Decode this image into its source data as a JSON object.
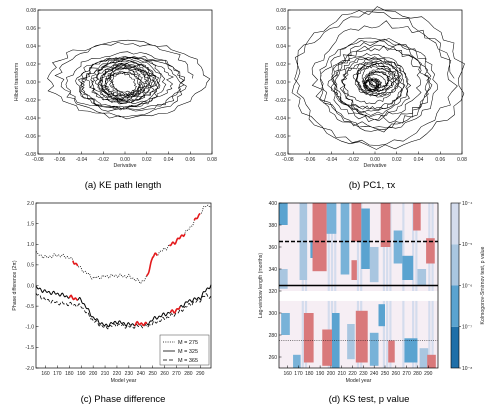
{
  "chart_data": [
    {
      "id": "a",
      "type": "line",
      "caption": "(a) KE path length",
      "xlabel": "Derivative",
      "ylabel": "Hilbert transform",
      "xlim": [
        -0.08,
        0.08
      ],
      "ylim": [
        -0.08,
        0.08
      ],
      "xticks": [
        "-0.08",
        "-0.06",
        "-0.04",
        "-0.02",
        "0.00",
        "0.02",
        "0.04",
        "0.06",
        "0.08"
      ],
      "yticks": [
        "-0.08",
        "-0.06",
        "-0.04",
        "-0.02",
        "0.00",
        "0.02",
        "0.04",
        "0.06",
        "0.08"
      ],
      "grid": false,
      "trajectory": {
        "center": [
          0.0,
          0.0
        ],
        "outer_radius_x": 0.062,
        "outer_radius_y": 0.036,
        "inner_radius": 0.016,
        "turns": 22
      }
    },
    {
      "id": "b",
      "type": "line",
      "caption": "(b) PC1, τx",
      "xlabel": "Derivative",
      "ylabel": "Hilbert transform",
      "xlim": [
        -0.08,
        0.08
      ],
      "ylim": [
        -0.08,
        0.08
      ],
      "xticks": [
        "-0.08",
        "-0.06",
        "-0.04",
        "-0.02",
        "0.00",
        "0.02",
        "0.04",
        "0.06",
        "0.08"
      ],
      "yticks": [
        "-0.08",
        "-0.06",
        "-0.04",
        "-0.02",
        "0.00",
        "0.02",
        "0.04",
        "0.06",
        "0.08"
      ],
      "grid": false,
      "trajectory": {
        "center": [
          0.0,
          0.0
        ],
        "outer_radius_x": 0.068,
        "outer_radius_y": 0.066,
        "inner_radius": 0.005,
        "turns": 30
      }
    },
    {
      "id": "c",
      "type": "line",
      "caption": "(c) Phase difference",
      "xlabel": "Model year",
      "ylabel": "Phase difference (2π)",
      "xlim": [
        152,
        299
      ],
      "ylim": [
        -2.0,
        2.0
      ],
      "xticks": [
        160,
        170,
        180,
        190,
        200,
        210,
        220,
        230,
        240,
        250,
        260,
        270,
        280,
        290
      ],
      "yticks": [
        "-2.0",
        "-1.5",
        "-1.0",
        "-0.5",
        "0.0",
        "0.5",
        "1.0",
        "1.5",
        "2.0"
      ],
      "grid": false,
      "legend_position": "lower-right",
      "x": [
        152,
        160,
        170,
        180,
        190,
        200,
        210,
        220,
        230,
        240,
        245,
        250,
        260,
        270,
        280,
        290,
        295,
        299
      ],
      "series": [
        {
          "name": "M = 275",
          "style": "dotted",
          "values": [
            0.78,
            0.68,
            0.74,
            0.68,
            0.4,
            0.18,
            0.22,
            0.24,
            0.22,
            0.08,
            0.18,
            0.7,
            0.88,
            1.08,
            1.35,
            1.75,
            1.95,
            1.92
          ]
        },
        {
          "name": "M = 325",
          "style": "solid",
          "values": [
            -0.05,
            -0.15,
            -0.2,
            -0.28,
            -0.35,
            -0.78,
            -0.98,
            -0.88,
            -0.95,
            -0.92,
            -0.95,
            -0.82,
            -0.7,
            -0.6,
            -0.38,
            -0.3,
            -0.1,
            0.0
          ]
        },
        {
          "name": "M = 365",
          "style": "dashed",
          "values": [
            -0.2,
            -0.35,
            -0.42,
            -0.45,
            -0.5,
            -0.85,
            -1.02,
            -0.95,
            -1.0,
            -0.98,
            -1.0,
            -0.92,
            -0.8,
            -0.68,
            -0.48,
            -0.35,
            -0.22,
            -0.3
          ]
        }
      ],
      "highlights": [
        {
          "series": "M = 275",
          "x_ranges": [
            [
              183,
              187
            ],
            [
              245,
              254
            ],
            [
              264,
              277
            ],
            [
              285,
              290
            ]
          ]
        },
        {
          "series": "M = 325",
          "x_ranges": [
            [
              180,
              187
            ],
            [
              235,
              245
            ],
            [
              265,
              273
            ]
          ]
        }
      ],
      "highlight_color": "#e31a1c"
    },
    {
      "id": "d",
      "type": "heatmap",
      "caption": "(d) KS test, p value",
      "xlabel": "Model year",
      "ylabel": "Lag-window length (months)",
      "xlim": [
        152,
        299
      ],
      "ylim": [
        250,
        400
      ],
      "xticks": [
        160,
        170,
        180,
        190,
        200,
        210,
        220,
        230,
        240,
        250,
        260,
        270,
        280,
        290
      ],
      "yticks": [
        260,
        280,
        300,
        320,
        340,
        360,
        380,
        400
      ],
      "colorbar": {
        "label": "Kolmogorov-Smirnov test, p value",
        "ticks": [
          "10⁻⁸",
          "10⁻⁷",
          "10⁻⁶",
          "10⁻⁵",
          "10⁻⁴"
        ],
        "colors": [
          "#1f6fa8",
          "#5aa3d0",
          "#a9c6e0",
          "#d4dced",
          "#f6eef4"
        ]
      },
      "reference_lines": [
        {
          "y": 365,
          "style": "dashed"
        },
        {
          "y": 325,
          "style": "solid"
        },
        {
          "y": 275,
          "style": "dotted"
        }
      ],
      "gap_y_range": [
        311,
        320
      ],
      "blue_blocks": [
        [
          152,
          160,
          380,
          400
        ],
        [
          171,
          178,
          330,
          400
        ],
        [
          209,
          217,
          335,
          400
        ],
        [
          228,
          236,
          340,
          395
        ],
        [
          236,
          244,
          328,
          360
        ],
        [
          258,
          266,
          345,
          375
        ],
        [
          266,
          276,
          330,
          352
        ],
        [
          280,
          288,
          325,
          340
        ],
        [
          196,
          205,
          372,
          400
        ],
        [
          181,
          188,
          350,
          366
        ],
        [
          152,
          160,
          322,
          340
        ],
        [
          165,
          172,
          250,
          262
        ],
        [
          201,
          208,
          250,
          300
        ],
        [
          215,
          222,
          258,
          290
        ],
        [
          236,
          244,
          252,
          282
        ],
        [
          268,
          280,
          255,
          277
        ],
        [
          282,
          290,
          250,
          268
        ],
        [
          154,
          162,
          280,
          300
        ],
        [
          244,
          250,
          288,
          308
        ]
      ],
      "red_blocks": [
        [
          183,
          196,
          338,
          400
        ],
        [
          219,
          228,
          365,
          400
        ],
        [
          219,
          224,
          330,
          348
        ],
        [
          246,
          255,
          360,
          400
        ],
        [
          276,
          283,
          375,
          400
        ],
        [
          288,
          296,
          345,
          368
        ],
        [
          175,
          184,
          255,
          300
        ],
        [
          192,
          201,
          252,
          285
        ],
        [
          223,
          234,
          255,
          302
        ],
        [
          253,
          259,
          255,
          275
        ],
        [
          289,
          297,
          250,
          262
        ]
      ]
    }
  ]
}
